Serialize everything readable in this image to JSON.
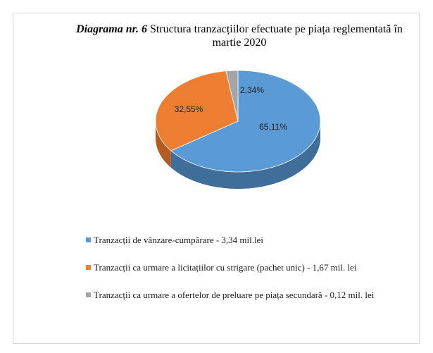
{
  "chart_data": {
    "type": "pie",
    "title_label": "Diagrama nr. 6",
    "title": "Structura tranzacțiilor efectuate pe piața reglementată în martie 2020",
    "series": [
      {
        "name": "Tranzacții de vânzare-cumpărare - 3,34 mil.lei",
        "color": "#5b9bd5"
      },
      {
        "name": "Tranzacții ca urmare a licitațiilor cu strigare (pachet unic) - 1,67 mil. lei",
        "color": "#ed7d31"
      },
      {
        "name": "Tranzacții ca urmare a ofertelor de preluare pe piața secundară - 0,12 mil. lei",
        "color": "#a5a5a5"
      }
    ],
    "values": [
      65.11,
      32.55,
      2.34
    ],
    "value_labels": [
      "65,11%",
      "32,55%",
      "2,34%"
    ]
  }
}
